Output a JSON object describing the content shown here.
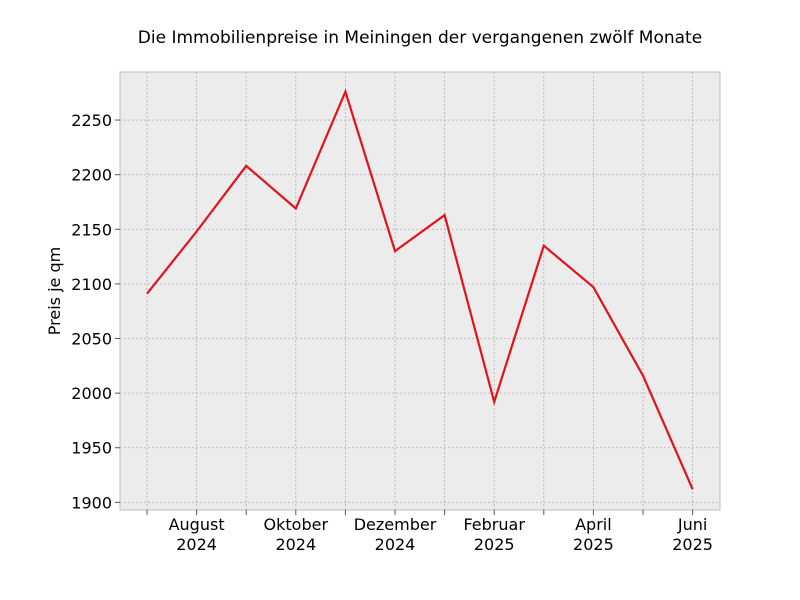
{
  "chart_data": {
    "type": "line",
    "title": "Die Immobilienpreise in Meiningen der vergangenen zwölf Monate",
    "xlabel": "",
    "ylabel": "Preis je qm",
    "x": [
      "2024-07",
      "2024-08",
      "2024-09",
      "2024-10",
      "2024-11",
      "2024-12",
      "2025-01",
      "2025-02",
      "2025-03",
      "2025-04",
      "2025-05",
      "2025-06"
    ],
    "series": [
      {
        "values": [
          2091,
          2148,
          2208,
          2169,
          2276,
          2130,
          2163,
          1992,
          2135,
          2097,
          2016,
          1912
        ],
        "color": "#e3121b"
      }
    ],
    "ylim": [
      1893,
      2294
    ],
    "yticks": [
      1900,
      1950,
      2000,
      2050,
      2100,
      2150,
      2200,
      2250
    ],
    "xtick_labels": [
      {
        "x": "2024-08",
        "line1": "August",
        "line2": "2024"
      },
      {
        "x": "2024-10",
        "line1": "Oktober",
        "line2": "2024"
      },
      {
        "x": "2024-12",
        "line1": "Dezember",
        "line2": "2024"
      },
      {
        "x": "2025-02",
        "line1": "Februar",
        "line2": "2025"
      },
      {
        "x": "2025-04",
        "line1": "April",
        "line2": "2025"
      },
      {
        "x": "2025-06",
        "line1": "Juni",
        "line2": "2025"
      }
    ],
    "grid": true,
    "background_color": "#ececec",
    "grid_color": "#b0b0b0"
  }
}
